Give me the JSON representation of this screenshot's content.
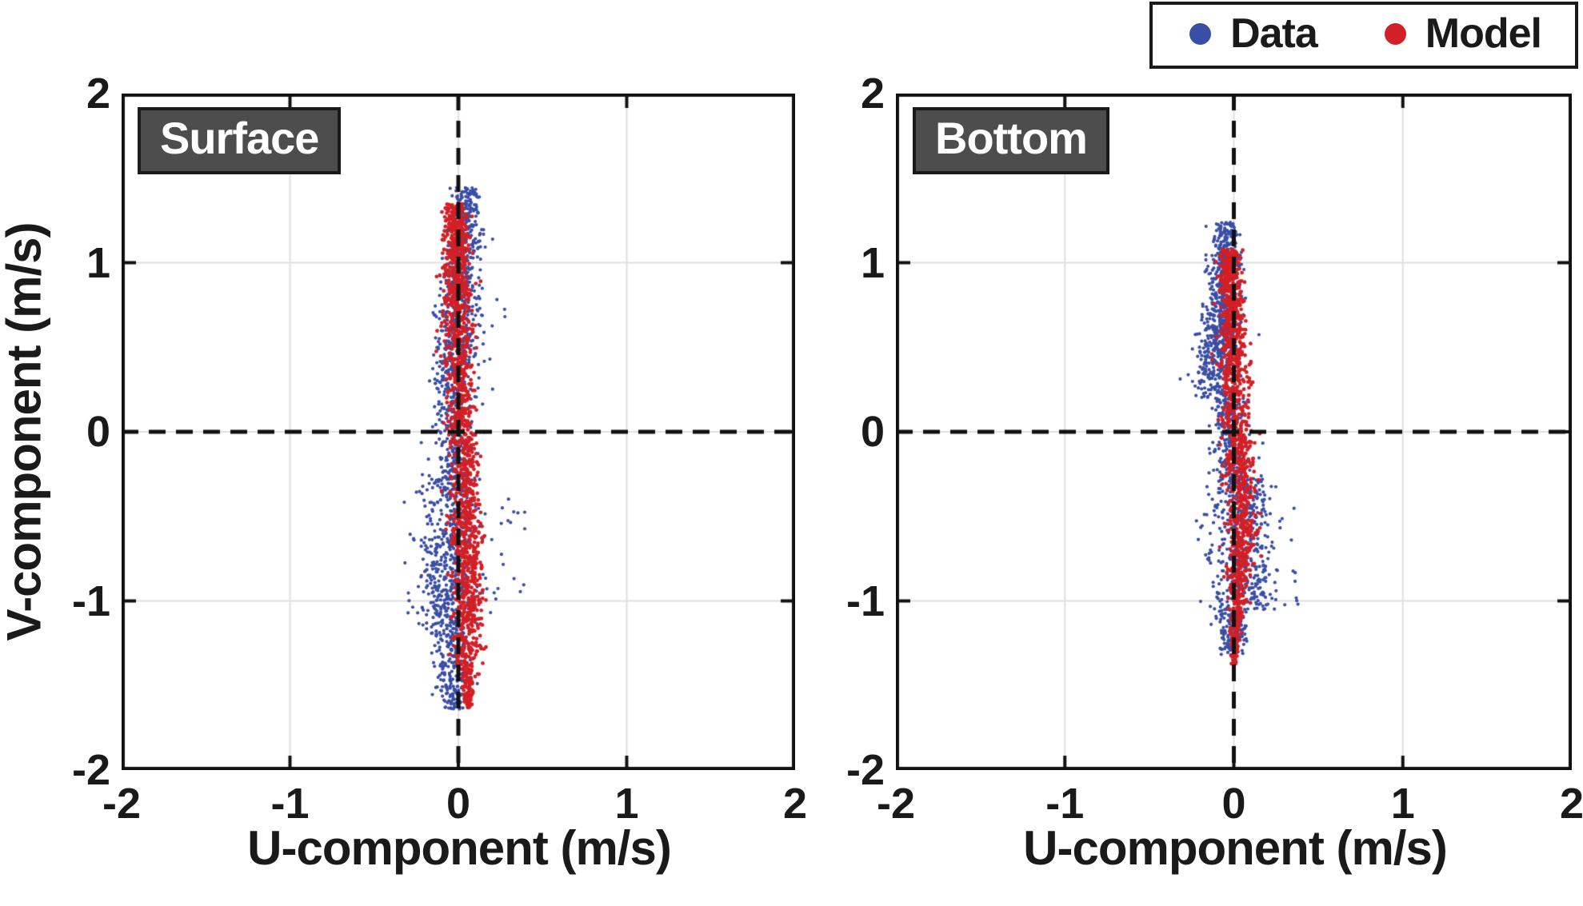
{
  "figure": {
    "background": "#ffffff"
  },
  "colors": {
    "data_blue": "#3A4EA5",
    "model_red": "#D22027",
    "panel_label_bg": "#4D4D4D",
    "grid": "#E0E0E0",
    "axis": "#111111"
  },
  "legend": {
    "entries": [
      {
        "label": "Data",
        "color": "#3A4EA5",
        "marker": "circle"
      },
      {
        "label": "Model",
        "color": "#D22027",
        "marker": "circle"
      }
    ]
  },
  "chart_data": [
    {
      "type": "scatter",
      "panel": "Surface",
      "xlabel": "U-component (m/s)",
      "ylabel": "V-component (m/s)",
      "xlim": [
        -2,
        2
      ],
      "ylim": [
        -2,
        2
      ],
      "xticks": [
        -2,
        -1,
        0,
        1,
        2
      ],
      "yticks": [
        2,
        1,
        0,
        -1,
        -2
      ],
      "grid": true,
      "zero_lines": "black-dashed",
      "legend_position": "top-right-outside",
      "series": [
        {
          "name": "Data",
          "color": "#3A4EA5",
          "description": "observed currents, elongated vertical cloud centered near u=0, v from -1.64 to 1.45 m/s",
          "segments": [
            {
              "v": [
                1.45,
                0.95
              ],
              "u_mean": [
                0.05,
                0.04
              ],
              "u_sd": [
                0.04,
                0.055
              ],
              "n": 260
            },
            {
              "v": [
                0.95,
                0.25
              ],
              "u_mean": [
                0.03,
                -0.04
              ],
              "u_sd": [
                0.06,
                0.075
              ],
              "n": 400
            },
            {
              "v": [
                0.25,
                -0.25
              ],
              "u_mean": [
                -0.02,
                -0.03
              ],
              "u_sd": [
                0.05,
                0.06
              ],
              "n": 190
            },
            {
              "v": [
                -0.25,
                -1.15
              ],
              "u_mean": [
                -0.04,
                -0.07
              ],
              "u_sd": [
                0.085,
                0.08
              ],
              "n": 520
            },
            {
              "v": [
                -1.15,
                -1.64
              ],
              "u_mean": [
                -0.05,
                -0.03
              ],
              "u_sd": [
                0.06,
                0.04
              ],
              "n": 230
            }
          ],
          "outliers": [
            {
              "u": [
                0.12,
                0.42
              ],
              "v": [
                -1.0,
                -0.35
              ],
              "n": 22
            },
            {
              "u": [
                -0.3,
                -0.18
              ],
              "v": [
                -1.35,
                -0.6
              ],
              "n": 10
            },
            {
              "u": [
                0.12,
                0.3
              ],
              "v": [
                0.25,
                0.75
              ],
              "n": 8
            }
          ]
        },
        {
          "name": "Model",
          "color": "#D22027",
          "description": "modelled currents, narrow vertical band, v from -1.63 to 1.35 m/s, slight S-curve crossing u=0",
          "segments": [
            {
              "v": [
                1.35,
                0.8
              ],
              "u_mean": [
                -0.015,
                -0.01
              ],
              "u_sd": [
                0.035,
                0.045
              ],
              "n": 400
            },
            {
              "v": [
                0.8,
                0.0
              ],
              "u_mean": [
                -0.01,
                0.02
              ],
              "u_sd": [
                0.045,
                0.04
              ],
              "n": 400
            },
            {
              "v": [
                0.0,
                -0.8
              ],
              "u_mean": [
                0.03,
                0.055
              ],
              "u_sd": [
                0.04,
                0.05
              ],
              "n": 430
            },
            {
              "v": [
                -0.8,
                -1.35
              ],
              "u_mean": [
                0.055,
                0.05
              ],
              "u_sd": [
                0.05,
                0.038
              ],
              "n": 300
            },
            {
              "v": [
                -1.35,
                -1.63
              ],
              "u_mean": [
                0.05,
                0.06
              ],
              "u_sd": [
                0.032,
                0.01
              ],
              "n": 130
            }
          ],
          "outliers": []
        }
      ]
    },
    {
      "type": "scatter",
      "panel": "Bottom",
      "xlabel": "U-component (m/s)",
      "ylabel": "V-component (m/s)",
      "xlim": [
        -2,
        2
      ],
      "ylim": [
        -2,
        2
      ],
      "xticks": [
        -2,
        -1,
        0,
        1,
        2
      ],
      "yticks": [
        2,
        1,
        0,
        -1,
        -2
      ],
      "grid": true,
      "zero_lines": "black-dashed",
      "series": [
        {
          "name": "Data",
          "color": "#3A4EA5",
          "description": "observed currents, v from -1.32 to 1.24 m/s; upper cloud left of u=0, lower cloud spreads right",
          "segments": [
            {
              "v": [
                1.24,
                0.85
              ],
              "u_mean": [
                -0.04,
                -0.06
              ],
              "u_sd": [
                0.04,
                0.05
              ],
              "n": 250
            },
            {
              "v": [
                0.85,
                0.2
              ],
              "u_mean": [
                -0.07,
                -0.1
              ],
              "u_sd": [
                0.05,
                0.062
              ],
              "n": 470
            },
            {
              "v": [
                0.2,
                -0.25
              ],
              "u_mean": [
                -0.04,
                0.0
              ],
              "u_sd": [
                0.05,
                0.06
              ],
              "n": 200
            },
            {
              "v": [
                -0.25,
                -1.05
              ],
              "u_mean": [
                0.03,
                0.05
              ],
              "u_sd": [
                0.09,
                0.1
              ],
              "n": 460
            },
            {
              "v": [
                -1.05,
                -1.32
              ],
              "u_mean": [
                0.0,
                -0.01
              ],
              "u_sd": [
                0.06,
                0.035
              ],
              "n": 140
            }
          ],
          "outliers": [
            {
              "u": [
                0.15,
                0.38
              ],
              "v": [
                -1.05,
                -0.45
              ],
              "n": 20
            },
            {
              "u": [
                -0.27,
                -0.16
              ],
              "v": [
                0.2,
                0.6
              ],
              "n": 10
            }
          ]
        },
        {
          "name": "Model",
          "color": "#D22027",
          "description": "modelled currents, narrow band, v from -1.38 to 1.08 m/s, tapering at bottom",
          "segments": [
            {
              "v": [
                1.08,
                0.55
              ],
              "u_mean": [
                -0.025,
                -0.015
              ],
              "u_sd": [
                0.03,
                0.04
              ],
              "n": 380
            },
            {
              "v": [
                0.55,
                0.0
              ],
              "u_mean": [
                -0.01,
                0.01
              ],
              "u_sd": [
                0.04,
                0.04
              ],
              "n": 300
            },
            {
              "v": [
                0.0,
                -0.75
              ],
              "u_mean": [
                0.03,
                0.05
              ],
              "u_sd": [
                0.04,
                0.045
              ],
              "n": 400
            },
            {
              "v": [
                -0.75,
                -1.38
              ],
              "u_mean": [
                0.03,
                0.0
              ],
              "u_sd": [
                0.04,
                0.008
              ],
              "n": 270
            }
          ],
          "outliers": []
        }
      ]
    }
  ]
}
